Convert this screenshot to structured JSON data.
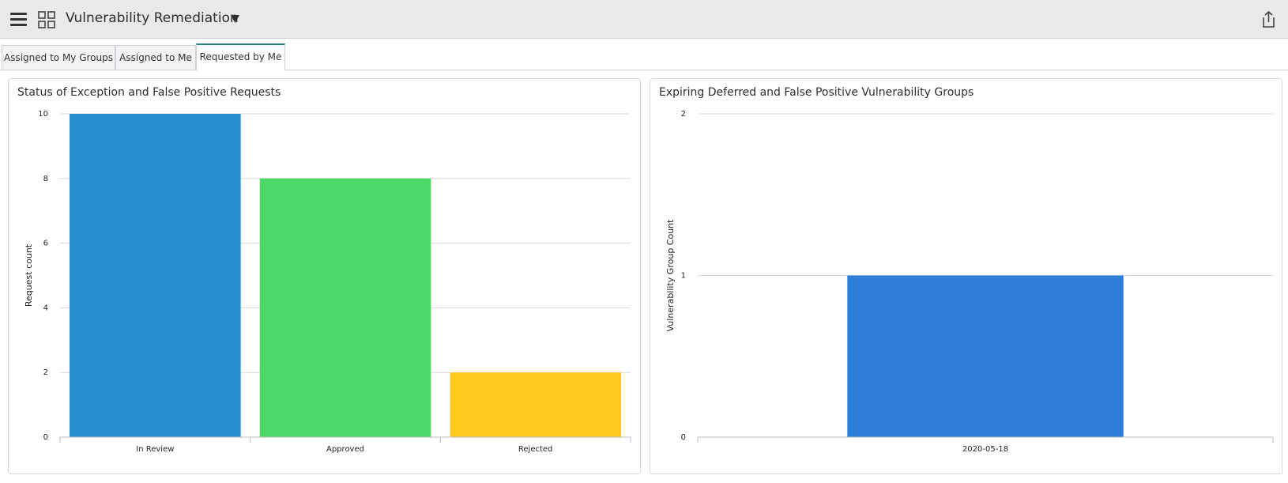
{
  "header": {
    "title": "Vulnerability Remediation"
  },
  "tabs": [
    "Assigned to My Groups",
    "Assigned to Me",
    "Requested by Me"
  ],
  "chart_data": [
    {
      "type": "bar",
      "title": "Status of Exception and False Positive Requests",
      "y_label": "Request count",
      "categories": [
        "In Review",
        "Approved",
        "Rejected"
      ],
      "values": [
        10,
        8,
        2
      ],
      "colors": [
        "#278ecf",
        "#4cd864",
        "#ffca1f"
      ],
      "ylim": [
        0,
        10
      ],
      "yticks": [
        0,
        2,
        4,
        6,
        8,
        10
      ],
      "grid": true
    },
    {
      "type": "bar",
      "title": "Expiring Deferred and False Positive Vulnerability Groups",
      "y_label": "Vulnerability Group Count",
      "categories": [
        "2020-05-18"
      ],
      "values": [
        1
      ],
      "colors": [
        "#2d7fda"
      ],
      "ylim": [
        0,
        2
      ],
      "yticks": [
        0,
        1,
        2
      ],
      "grid": true
    }
  ]
}
